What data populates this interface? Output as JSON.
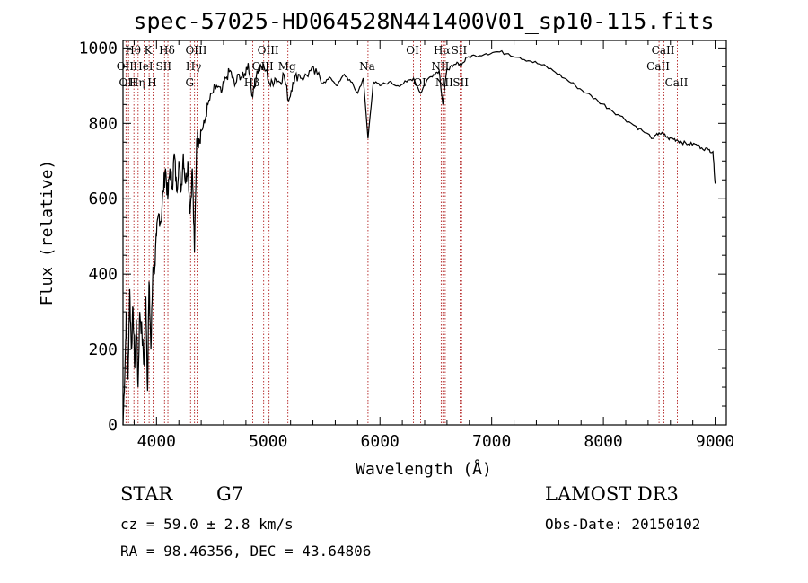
{
  "chart_data": {
    "type": "line",
    "title": "spec-57025-HD064528N441400V01_sp10-115.fits",
    "xlabel": "Wavelength (Å)",
    "ylabel": "Flux (relative)",
    "xlim": [
      3700,
      9100
    ],
    "ylim": [
      0,
      1020
    ],
    "xticks": [
      4000,
      5000,
      6000,
      7000,
      8000,
      9000
    ],
    "yticks": [
      0,
      200,
      400,
      600,
      800,
      1000
    ],
    "grid": false,
    "series": [
      {
        "name": "flux",
        "x": [
          3700,
          3720,
          3730,
          3745,
          3760,
          3775,
          3790,
          3805,
          3820,
          3835,
          3850,
          3870,
          3889,
          3905,
          3920,
          3933,
          3950,
          3968,
          3985,
          4000,
          4020,
          4040,
          4060,
          4080,
          4101,
          4120,
          4140,
          4160,
          4180,
          4200,
          4220,
          4240,
          4260,
          4280,
          4300,
          4320,
          4340,
          4360,
          4380,
          4400,
          4430,
          4460,
          4500,
          4540,
          4580,
          4620,
          4660,
          4700,
          4740,
          4780,
          4820,
          4861,
          4900,
          4940,
          4980,
          5020,
          5060,
          5100,
          5140,
          5183,
          5220,
          5270,
          5320,
          5380,
          5440,
          5500,
          5560,
          5620,
          5680,
          5740,
          5800,
          5850,
          5893,
          5940,
          6000,
          6080,
          6160,
          6240,
          6300,
          6363,
          6420,
          6480,
          6530,
          6563,
          6600,
          6650,
          6700,
          6730,
          6780,
          6850,
          6950,
          7050,
          7150,
          7250,
          7350,
          7450,
          7550,
          7650,
          7750,
          7850,
          7950,
          8050,
          8150,
          8250,
          8350,
          8450,
          8498,
          8542,
          8580,
          8620,
          8662,
          8700,
          8760,
          8820,
          8880,
          8940,
          8980,
          9000
        ],
        "y": [
          0,
          180,
          300,
          120,
          360,
          200,
          310,
          150,
          280,
          100,
          300,
          240,
          160,
          340,
          90,
          380,
          200,
          420,
          420,
          500,
          560,
          540,
          620,
          680,
          600,
          680,
          630,
          720,
          620,
          700,
          620,
          720,
          640,
          700,
          560,
          680,
          460,
          760,
          760,
          780,
          800,
          850,
          880,
          900,
          880,
          920,
          940,
          900,
          930,
          920,
          960,
          870,
          940,
          950,
          940,
          900,
          920,
          910,
          930,
          860,
          910,
          930,
          920,
          940,
          930,
          910,
          920,
          900,
          930,
          910,
          880,
          920,
          760,
          910,
          900,
          910,
          900,
          910,
          920,
          880,
          915,
          930,
          940,
          850,
          945,
          950,
          960,
          955,
          975,
          980,
          985,
          990,
          985,
          975,
          965,
          955,
          940,
          920,
          900,
          880,
          860,
          840,
          820,
          800,
          780,
          760,
          775,
          770,
          760,
          760,
          755,
          750,
          745,
          745,
          735,
          730,
          725,
          640
        ]
      }
    ],
    "lines": [
      {
        "wl": 3727,
        "label": "OII",
        "row": 1
      },
      {
        "wl": 3750,
        "label": "OII",
        "row": 2
      },
      {
        "wl": 3798,
        "label": "Hθ",
        "row": 0
      },
      {
        "wl": 3835,
        "label": "Hη",
        "row": 2
      },
      {
        "wl": 3889,
        "label": "HeI",
        "row": 1
      },
      {
        "wl": 3934,
        "label": "K",
        "row": 0
      },
      {
        "wl": 3969,
        "label": "H",
        "row": 2
      },
      {
        "wl": 4072,
        "label": "SII",
        "row": 1
      },
      {
        "wl": 4102,
        "label": "Hδ",
        "row": 0
      },
      {
        "wl": 4305,
        "label": "G",
        "row": 2
      },
      {
        "wl": 4340,
        "label": "Hγ",
        "row": 1
      },
      {
        "wl": 4363,
        "label": "OIII",
        "row": 0
      },
      {
        "wl": 4861,
        "label": "Hβ",
        "row": 2
      },
      {
        "wl": 4959,
        "label": "OIII",
        "row": 1
      },
      {
        "wl": 5007,
        "label": "OIII",
        "row": 0
      },
      {
        "wl": 5176,
        "label": "Mg",
        "row": 1
      },
      {
        "wl": 5893,
        "label": "Na",
        "row": 1
      },
      {
        "wl": 6300,
        "label": "OI",
        "row": 0
      },
      {
        "wl": 6364,
        "label": "OI",
        "row": 2
      },
      {
        "wl": 6548,
        "label": "NII",
        "row": 1
      },
      {
        "wl": 6563,
        "label": "Hα",
        "row": 0
      },
      {
        "wl": 6584,
        "label": "NII",
        "row": 2
      },
      {
        "wl": 6717,
        "label": "SII",
        "row": 0
      },
      {
        "wl": 6731,
        "label": "SII",
        "row": 2
      },
      {
        "wl": 8498,
        "label": "CaII",
        "row": 1
      },
      {
        "wl": 8542,
        "label": "CaII",
        "row": 0
      },
      {
        "wl": 8662,
        "label": "CaII",
        "row": 2
      }
    ],
    "line_color": "#b22222"
  },
  "info": {
    "object_type": "STAR",
    "subclass": "G7",
    "survey": "LAMOST DR3",
    "redshift": "cz = 59.0 ± 2.8 km/s",
    "obs_date": "Obs-Date: 20150102",
    "coords": "RA =  98.46356, DEC =  43.64806"
  }
}
